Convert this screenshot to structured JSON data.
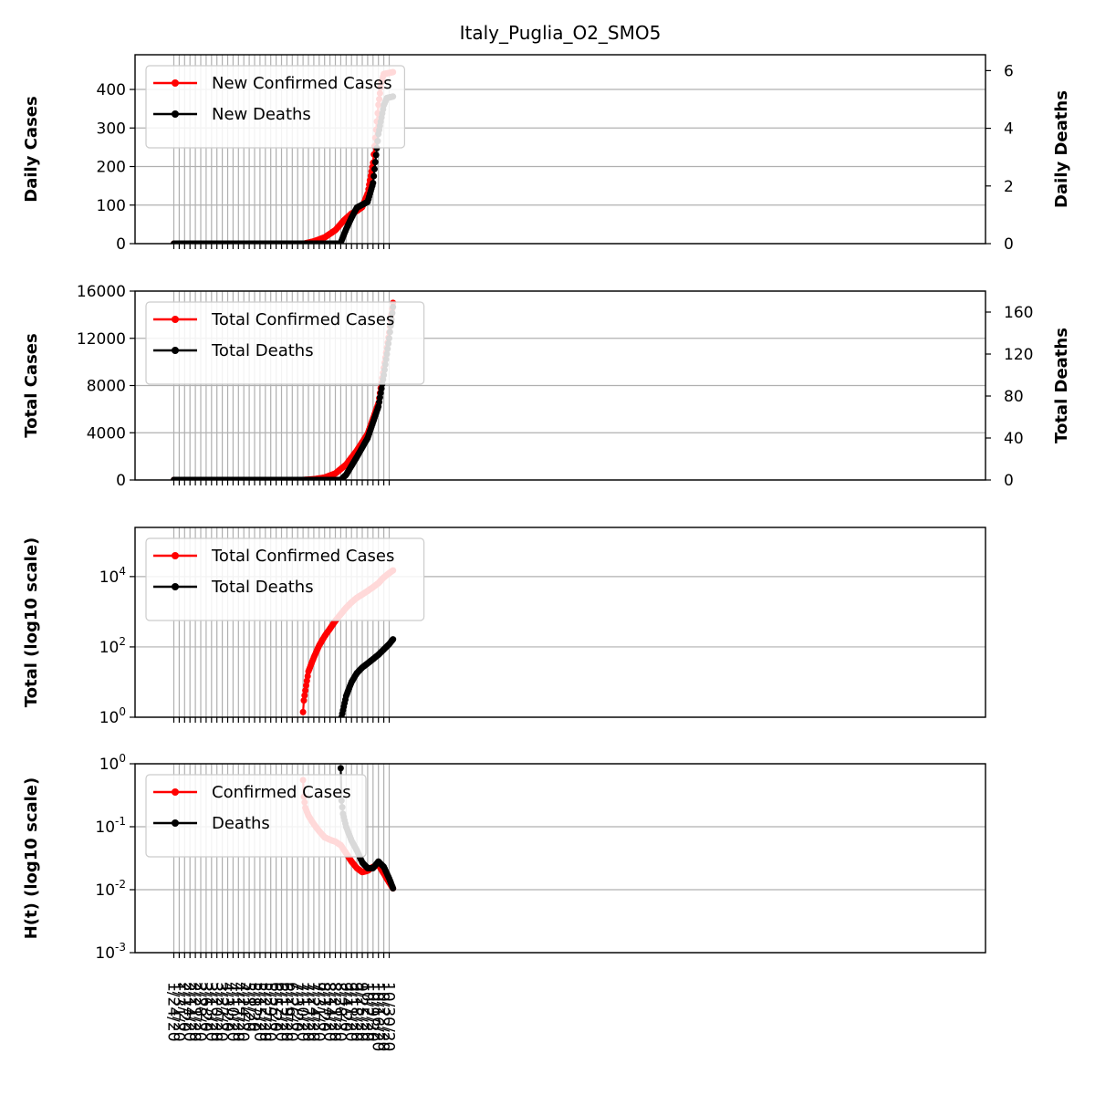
{
  "figure": {
    "title": "Italy_Puglia_O2_SMO5"
  },
  "chart_data": [
    {
      "type": "line",
      "ylabel": "Daily Cases",
      "y2label": "Daily Deaths",
      "ylim": [
        0,
        490
      ],
      "yticks": [
        0,
        100,
        200,
        300,
        400
      ],
      "y2lim": [
        0,
        6.55
      ],
      "y2ticks": [
        0,
        2,
        4,
        6
      ],
      "grid": true,
      "legend": "upper left",
      "series": [
        {
          "name": "New Confirmed Cases",
          "axis": "left",
          "color": "#ff0000",
          "points": [
            [
              "1/24/20",
              0
            ],
            [
              "7/10/20",
              0
            ],
            [
              "7/12/20",
              0.2
            ],
            [
              "7/24/20",
              6
            ],
            [
              "8/7/20",
              16
            ],
            [
              "8/21/20",
              35
            ],
            [
              "9/1/20",
              60
            ],
            [
              "9/11/20",
              78
            ],
            [
              "9/18/20",
              85
            ],
            [
              "9/25/20",
              95
            ],
            [
              "10/2/20",
              130
            ],
            [
              "10/9/20",
              210
            ],
            [
              "10/16/20",
              360
            ],
            [
              "10/20/20",
              420
            ],
            [
              "10/23/20",
              440
            ],
            [
              "11/4/20",
              445
            ]
          ]
        },
        {
          "name": "New Deaths",
          "axis": "right",
          "color": "#000000",
          "points": [
            [
              "1/24/20",
              0
            ],
            [
              "8/28/20",
              0
            ],
            [
              "8/29/20",
              0.1
            ],
            [
              "9/4/20",
              0.5
            ],
            [
              "9/11/20",
              0.9
            ],
            [
              "9/18/20",
              1.25
            ],
            [
              "9/25/20",
              1.35
            ],
            [
              "10/2/20",
              1.45
            ],
            [
              "10/9/20",
              2.1
            ],
            [
              "10/16/20",
              3.8
            ],
            [
              "10/23/20",
              4.8
            ],
            [
              "10/27/20",
              5.05
            ],
            [
              "11/4/20",
              5.1
            ]
          ]
        }
      ]
    },
    {
      "type": "line",
      "ylabel": "Total Cases",
      "y2label": "Total Deaths",
      "ylim": [
        0,
        16000
      ],
      "yticks": [
        0,
        4000,
        8000,
        12000,
        16000
      ],
      "y2lim": [
        0,
        180
      ],
      "y2ticks": [
        0,
        40,
        80,
        120,
        160
      ],
      "grid": true,
      "legend": "upper left",
      "series": [
        {
          "name": "Total Confirmed Cases",
          "axis": "left",
          "color": "#ff0000",
          "points": [
            [
              "1/24/20",
              0
            ],
            [
              "7/10/20",
              0
            ],
            [
              "7/24/20",
              60
            ],
            [
              "8/7/20",
              200
            ],
            [
              "8/21/20",
              550
            ],
            [
              "9/4/20",
              1300
            ],
            [
              "9/18/20",
              2500
            ],
            [
              "10/2/20",
              3900
            ],
            [
              "10/16/20",
              6500
            ],
            [
              "10/23/20",
              9500
            ],
            [
              "10/30/20",
              12500
            ],
            [
              "11/4/20",
              15000
            ]
          ]
        },
        {
          "name": "Total Deaths",
          "axis": "right",
          "color": "#000000",
          "points": [
            [
              "1/24/20",
              0
            ],
            [
              "8/28/20",
              0
            ],
            [
              "9/4/20",
              5
            ],
            [
              "9/18/20",
              22
            ],
            [
              "10/2/20",
              40
            ],
            [
              "10/16/20",
              70
            ],
            [
              "10/23/20",
              100
            ],
            [
              "10/30/20",
              135
            ],
            [
              "11/4/20",
              165
            ]
          ]
        }
      ]
    },
    {
      "type": "line",
      "ylabel": "Total (log10 scale)",
      "yscale": "log",
      "ylim": [
        1,
        250000
      ],
      "yticks": [
        1,
        100,
        10000
      ],
      "ytick_labels": [
        "10^0",
        "10^2",
        "10^4"
      ],
      "grid": true,
      "legend": "upper left",
      "series": [
        {
          "name": "Total Confirmed Cases",
          "color": "#ff0000",
          "points": [
            [
              "7/10/20",
              1.4
            ],
            [
              "7/11/20",
              3
            ],
            [
              "7/14/20",
              8
            ],
            [
              "7/17/20",
              20
            ],
            [
              "7/24/20",
              50
            ],
            [
              "7/31/20",
              110
            ],
            [
              "8/7/20",
              200
            ],
            [
              "8/14/20",
              330
            ],
            [
              "8/21/20",
              550
            ],
            [
              "8/28/20",
              850
            ],
            [
              "9/4/20",
              1300
            ],
            [
              "9/11/20",
              1850
            ],
            [
              "9/18/20",
              2500
            ],
            [
              "9/25/20",
              3100
            ],
            [
              "10/2/20",
              3900
            ],
            [
              "10/9/20",
              5000
            ],
            [
              "10/16/20",
              6500
            ],
            [
              "10/23/20",
              9500
            ],
            [
              "10/30/20",
              12500
            ],
            [
              "11/4/20",
              15000
            ]
          ]
        },
        {
          "name": "Total Deaths",
          "color": "#000000",
          "points": [
            [
              "8/29/20",
              1
            ],
            [
              "9/1/20",
              2
            ],
            [
              "9/4/20",
              4
            ],
            [
              "9/11/20",
              10
            ],
            [
              "9/18/20",
              18
            ],
            [
              "9/25/20",
              26
            ],
            [
              "10/2/20",
              34
            ],
            [
              "10/9/20",
              45
            ],
            [
              "10/16/20",
              60
            ],
            [
              "10/23/20",
              85
            ],
            [
              "10/30/20",
              120
            ],
            [
              "11/4/20",
              165
            ]
          ]
        }
      ]
    },
    {
      "type": "line",
      "ylabel": "H(t) (log10 scale)",
      "yscale": "log",
      "ylim": [
        0.001,
        1
      ],
      "yticks": [
        0.001,
        0.01,
        0.1,
        1
      ],
      "ytick_labels": [
        "10^-3",
        "10^-2",
        "10^-1",
        "10^0"
      ],
      "grid": true,
      "legend": "upper left",
      "series": [
        {
          "name": "Confirmed Cases",
          "color": "#ff0000",
          "points": [
            [
              "7/10/20",
              0.55
            ],
            [
              "7/11/20",
              0.3
            ],
            [
              "7/13/20",
              0.2
            ],
            [
              "7/17/20",
              0.15
            ],
            [
              "7/24/20",
              0.11
            ],
            [
              "7/31/20",
              0.085
            ],
            [
              "8/7/20",
              0.068
            ],
            [
              "8/14/20",
              0.062
            ],
            [
              "8/21/20",
              0.058
            ],
            [
              "8/28/20",
              0.051
            ],
            [
              "9/4/20",
              0.038
            ],
            [
              "9/11/20",
              0.028
            ],
            [
              "9/18/20",
              0.022
            ],
            [
              "9/25/20",
              0.019
            ],
            [
              "10/2/20",
              0.02
            ],
            [
              "10/9/20",
              0.023
            ],
            [
              "10/16/20",
              0.025
            ],
            [
              "10/23/20",
              0.018
            ],
            [
              "10/30/20",
              0.013
            ],
            [
              "11/4/20",
              0.0105
            ]
          ]
        },
        {
          "name": "Deaths",
          "color": "#000000",
          "points": [
            [
              "8/28/20",
              0.85
            ],
            [
              "8/29/20",
              0.26
            ],
            [
              "8/31/20",
              0.16
            ],
            [
              "9/4/20",
              0.1
            ],
            [
              "9/11/20",
              0.06
            ],
            [
              "9/18/20",
              0.042
            ],
            [
              "9/25/20",
              0.027
            ],
            [
              "10/2/20",
              0.022
            ],
            [
              "10/9/20",
              0.022
            ],
            [
              "10/16/20",
              0.028
            ],
            [
              "10/23/20",
              0.023
            ],
            [
              "10/30/20",
              0.015
            ],
            [
              "11/4/20",
              0.0105
            ]
          ]
        }
      ]
    }
  ],
  "x_axis": {
    "tick_labels": [
      "1/24/20",
      "1/31/20",
      "2/7/20",
      "2/14/20",
      "2/21/20",
      "2/28/20",
      "3/6/20",
      "3/13/20",
      "3/20/20",
      "3/27/20",
      "4/3/20",
      "4/10/20",
      "4/17/20",
      "4/24/20",
      "5/1/20",
      "5/8/20",
      "5/15/20",
      "5/22/20",
      "5/29/20",
      "6/5/20",
      "6/12/20",
      "6/19/20",
      "6/26/20",
      "7/3/20",
      "7/10/20",
      "7/17/20",
      "7/24/20",
      "7/31/20",
      "8/7/20",
      "8/14/20",
      "8/21/20",
      "8/28/20",
      "9/4/20",
      "9/11/20",
      "9/18/20",
      "9/25/20",
      "10/2/20",
      "10/9/20",
      "10/16/20",
      "10/23/20",
      "10/30/20"
    ]
  }
}
